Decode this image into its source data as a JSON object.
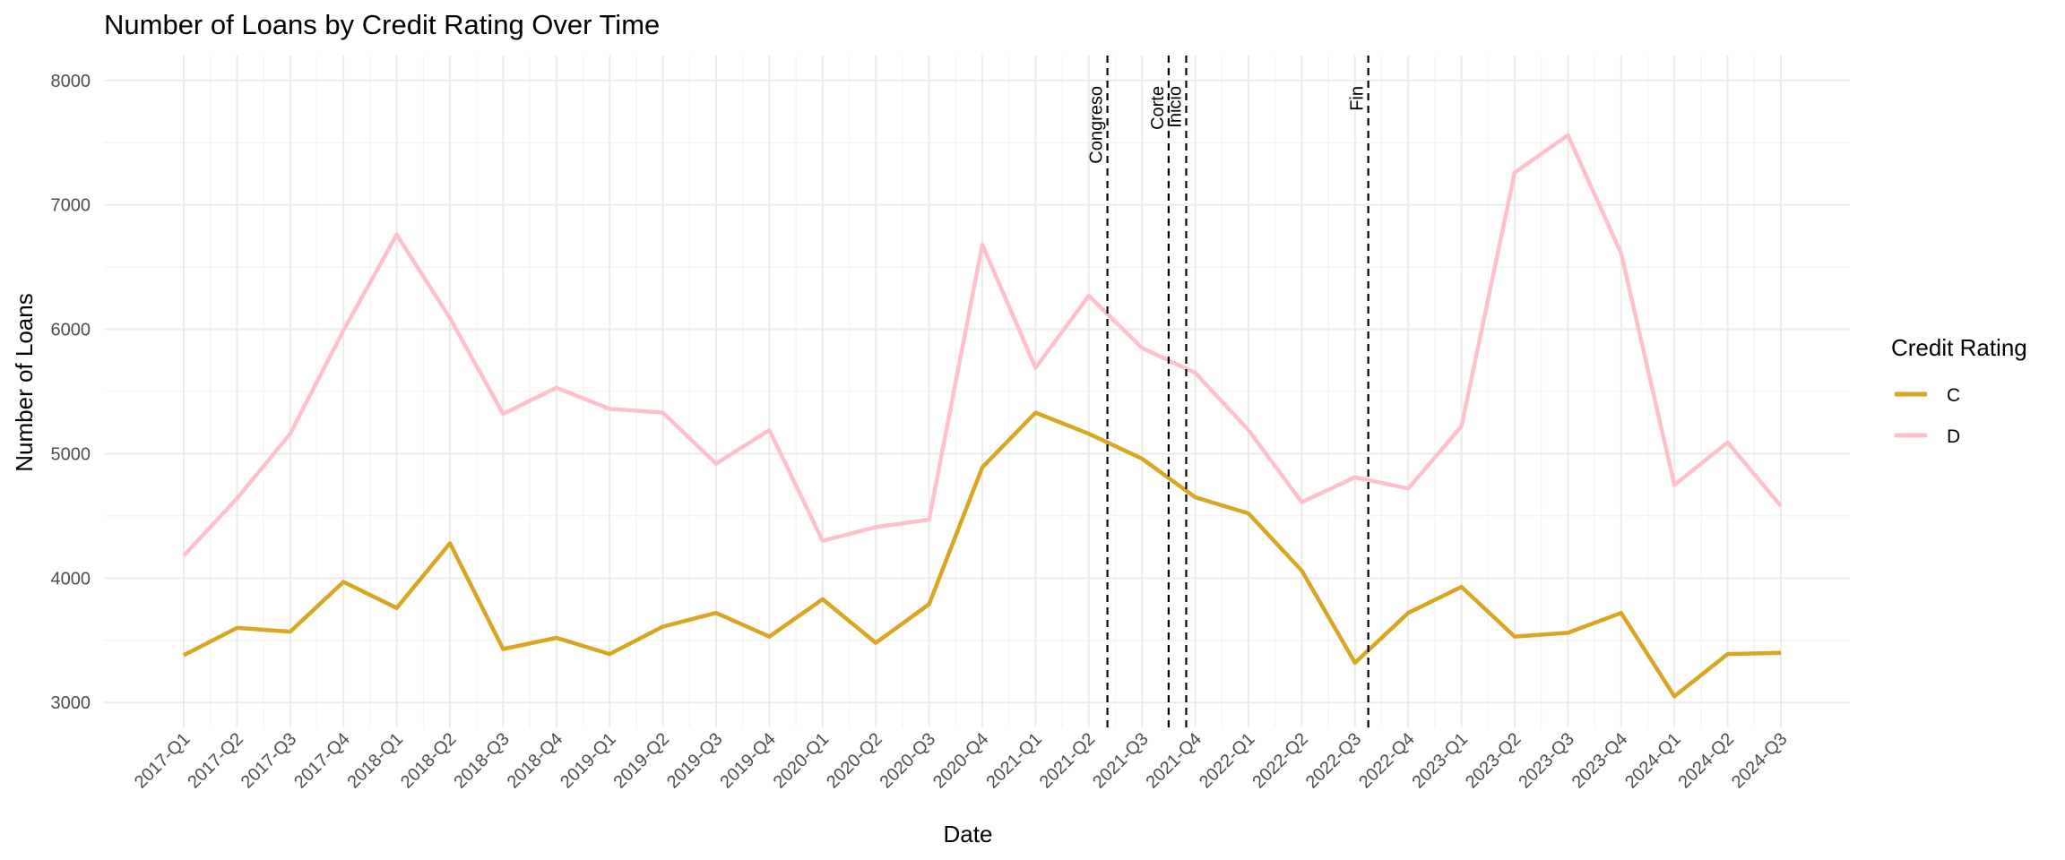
{
  "chart_data": {
    "type": "line",
    "title": "Number of Loans by Credit Rating Over Time",
    "xlabel": "Date",
    "ylabel": "Number of Loans",
    "categories": [
      "2017-Q1",
      "2017-Q2",
      "2017-Q3",
      "2017-Q4",
      "2018-Q1",
      "2018-Q2",
      "2018-Q3",
      "2018-Q4",
      "2019-Q1",
      "2019-Q2",
      "2019-Q3",
      "2019-Q4",
      "2020-Q1",
      "2020-Q2",
      "2020-Q3",
      "2020-Q4",
      "2021-Q1",
      "2021-Q2",
      "2021-Q3",
      "2021-Q4",
      "2022-Q1",
      "2022-Q2",
      "2022-Q3",
      "2022-Q4",
      "2023-Q1",
      "2023-Q2",
      "2023-Q3",
      "2023-Q4",
      "2024-Q1",
      "2024-Q2",
      "2024-Q3"
    ],
    "ylim": [
      2800,
      8200
    ],
    "yticks": [
      3000,
      4000,
      5000,
      6000,
      7000,
      8000
    ],
    "grid": true,
    "legend_title": "Credit Rating",
    "legend_position": "right",
    "series": [
      {
        "name": "C",
        "color": "#DAA520",
        "values": [
          3380,
          3600,
          3570,
          3970,
          3760,
          4280,
          3430,
          3520,
          3390,
          3610,
          3720,
          3530,
          3830,
          3480,
          3790,
          4890,
          5330,
          5160,
          4960,
          4650,
          4520,
          4060,
          3320,
          3720,
          3930,
          3530,
          3560,
          3720,
          3050,
          3390,
          3400
        ]
      },
      {
        "name": "D",
        "color": "#FFC0CB",
        "values": [
          4180,
          4640,
          5160,
          5990,
          6760,
          6090,
          5320,
          5530,
          5360,
          5330,
          4920,
          5190,
          4300,
          4410,
          4470,
          6680,
          5690,
          6270,
          5850,
          5650,
          5190,
          4610,
          4810,
          4720,
          5220,
          7260,
          7560,
          6610,
          4750,
          5090,
          4580
        ]
      }
    ],
    "events": [
      {
        "label": "Congreso",
        "x": 17.35
      },
      {
        "label": "Corte",
        "x": 18.5
      },
      {
        "label": "Inicio",
        "x": 18.83
      },
      {
        "label": "Fin",
        "x": 22.25
      }
    ]
  }
}
